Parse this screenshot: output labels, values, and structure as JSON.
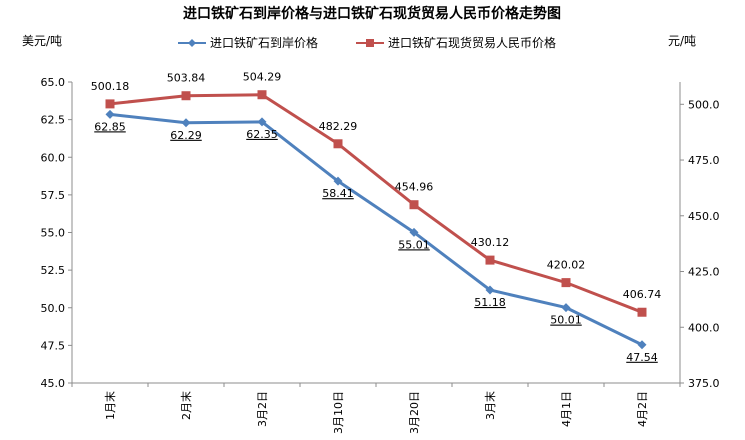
{
  "chart_data": {
    "type": "line",
    "title": "进口铁矿石到岸价格与进口铁矿石现货贸易人民币价格走势图",
    "y_left_unit": "美元/吨",
    "y_right_unit": "元/吨",
    "categories": [
      "1月末",
      "2月末",
      "3月2日",
      "3月10日",
      "3月20日",
      "3月末",
      "4月1日",
      "4月2日"
    ],
    "ylim_left": [
      45.0,
      65.0
    ],
    "ylim_right": [
      375.0,
      510.0
    ],
    "yticks_left": [
      "45.0",
      "47.5",
      "50.0",
      "52.5",
      "55.0",
      "57.5",
      "60.0",
      "62.5",
      "65.0"
    ],
    "yticks_right": [
      "375.0",
      "400.0",
      "425.0",
      "450.0",
      "475.0",
      "500.0"
    ],
    "grid": false,
    "legend_position": "top",
    "series": [
      {
        "name": "进口铁矿石到岸价格",
        "axis": "left",
        "color": "#4f81bd",
        "marker": "diamond",
        "values": [
          62.85,
          62.29,
          62.35,
          58.41,
          55.01,
          51.18,
          50.01,
          47.54
        ],
        "labels": [
          "62.85",
          "62.29",
          "62.35",
          "58.41",
          "55.01",
          "51.18",
          "50.01",
          "47.54"
        ]
      },
      {
        "name": "进口铁矿石现货贸易人民币价格",
        "axis": "right",
        "color": "#c0504d",
        "marker": "square",
        "values": [
          500.18,
          503.84,
          504.29,
          482.29,
          454.96,
          430.12,
          420.02,
          406.74
        ],
        "labels": [
          "500.18",
          "503.84",
          "504.29",
          "482.29",
          "454.96",
          "430.12",
          "420.02",
          "406.74"
        ]
      }
    ]
  }
}
